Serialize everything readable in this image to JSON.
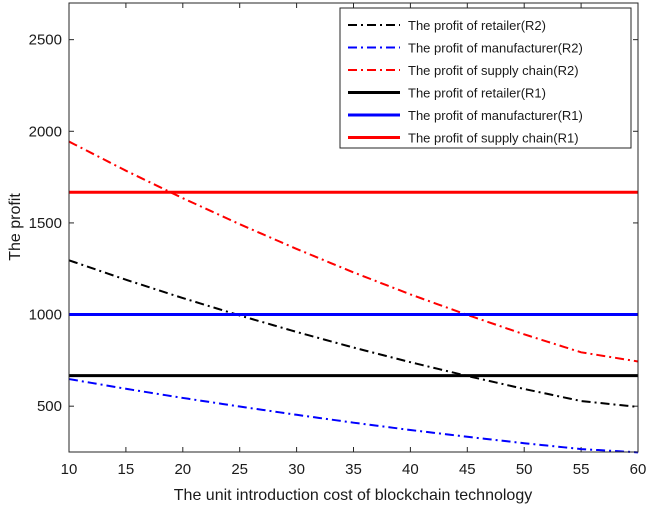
{
  "chart_data": {
    "type": "line",
    "title": "",
    "xlabel": "The unit introduction cost of blockchain technology",
    "ylabel": "The profit",
    "xlim": [
      10,
      60
    ],
    "ylim": [
      250,
      2700
    ],
    "xticks": [
      10,
      15,
      20,
      25,
      30,
      35,
      40,
      45,
      50,
      55,
      60
    ],
    "yticks": [
      500,
      1000,
      1500,
      2000,
      2500
    ],
    "grid": false,
    "legend_position": "top-right",
    "series": [
      {
        "name": "The profit of retailer(R2)",
        "color": "#000000",
        "style": "dashdot",
        "x": [
          10,
          15,
          20,
          25,
          30,
          35,
          40,
          45,
          50,
          55,
          60
        ],
        "y": [
          1296,
          1190,
          1090,
          995,
          905,
          820,
          740,
          665,
          594,
          528,
          496
        ]
      },
      {
        "name": "The profit of manufacturer(R2)",
        "color": "#0000ff",
        "style": "dashdot",
        "x": [
          10,
          15,
          20,
          25,
          30,
          35,
          40,
          45,
          50,
          55,
          60
        ],
        "y": [
          648,
          595,
          545,
          498,
          453,
          410,
          370,
          333,
          298,
          266,
          248
        ]
      },
      {
        "name": "The profit of supply chain(R2)",
        "color": "#ff0000",
        "style": "dashdot",
        "x": [
          10,
          15,
          20,
          25,
          30,
          35,
          40,
          45,
          50,
          55,
          60
        ],
        "y": [
          1944,
          1785,
          1635,
          1493,
          1358,
          1230,
          1110,
          998,
          892,
          794,
          744
        ]
      },
      {
        "name": "The profit of retailer(R1)",
        "color": "#000000",
        "style": "solid",
        "x": [
          10,
          60
        ],
        "y": [
          667,
          667
        ]
      },
      {
        "name": "The profit of manufacturer(R1)",
        "color": "#0000ff",
        "style": "solid",
        "x": [
          10,
          60
        ],
        "y": [
          1000,
          1000
        ]
      },
      {
        "name": "The profit of supply chain(R1)",
        "color": "#ff0000",
        "style": "solid",
        "x": [
          10,
          60
        ],
        "y": [
          1667,
          1667
        ]
      }
    ]
  }
}
